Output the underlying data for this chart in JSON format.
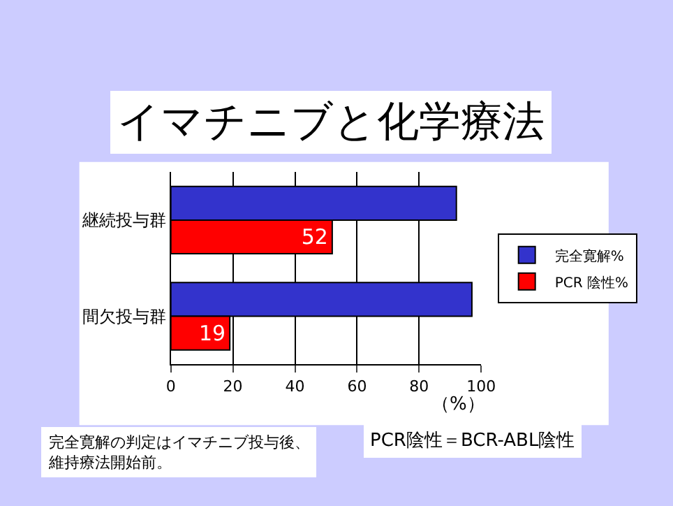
{
  "chart_data": {
    "type": "bar",
    "orientation": "horizontal",
    "title": "イマチニブと化学療法",
    "categories": [
      "継続投与群",
      "間欠投与群"
    ],
    "series": [
      {
        "name": "完全寛解%",
        "color": "#3333cc",
        "values": [
          92,
          97
        ]
      },
      {
        "name": "PCR 陰性%",
        "color": "#ff0000",
        "values": [
          52,
          19
        ],
        "value_labels": [
          "52",
          "19"
        ]
      }
    ],
    "xlabel": "（%）",
    "xlim": [
      0,
      100
    ],
    "xticks": [
      0,
      20,
      40,
      60,
      80,
      100
    ],
    "grid": "x",
    "legend": "right",
    "annotations": [
      "完全寛解の判定はイマチニブ投与後、維持療法開始前。",
      "PCR陰性＝BCR-ABL陰性"
    ]
  }
}
